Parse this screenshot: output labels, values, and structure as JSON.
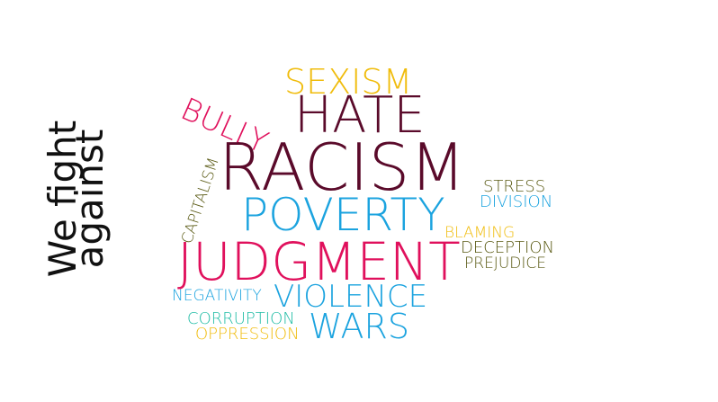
{
  "title": {
    "line1": "We fight",
    "line2": "against"
  },
  "words": {
    "sexism": "SEXISM",
    "bully": "BULLY",
    "hate": "HATE",
    "racism": "RACISM",
    "capitalism": "CAPITALISM",
    "stress": "STRESS",
    "division": "DIVISION",
    "poverty": "POVERTY",
    "blaming": "BLAMING",
    "deception": "DECEPTION",
    "prejudice": "PREJUDICE",
    "judgment": "JUDGMENT",
    "negativity": "NEGATIVITY",
    "violence": "VIOLENCE",
    "corruption": "CORRUPTION",
    "wars": "WARS",
    "oppression": "OPPRESSION"
  },
  "colors": {
    "maroon": "#5a0a2a",
    "pink": "#e0105c",
    "yellow": "#f0bc0c",
    "blue": "#1ba3df",
    "olive": "#5a5a14",
    "teal": "#22bda6"
  }
}
